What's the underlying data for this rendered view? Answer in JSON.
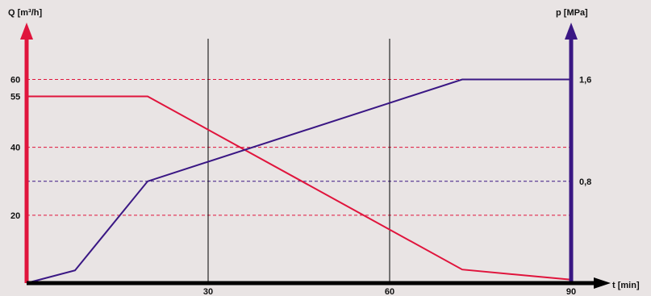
{
  "chart_data": {
    "type": "line",
    "xlabel": "t [min]",
    "ylabel_left": "Q [m³/h]",
    "ylabel_right": "p [MPa]",
    "xlim": [
      0,
      90
    ],
    "ylim_left": [
      0,
      72
    ],
    "ylim_right": [
      0,
      1.92
    ],
    "x_ticks": [
      {
        "value": 30,
        "label": "30"
      },
      {
        "value": 60,
        "label": "60"
      },
      {
        "value": 90,
        "label": "90"
      }
    ],
    "y_left_ticks": [
      {
        "value": 20,
        "label": "20"
      },
      {
        "value": 40,
        "label": "40"
      },
      {
        "value": 55,
        "label": "55"
      },
      {
        "value": 60,
        "label": "60"
      }
    ],
    "y_right_ticks": [
      {
        "value": 0.8,
        "label": "0,8"
      },
      {
        "value": 1.6,
        "label": "1,6"
      }
    ],
    "vertical_gridlines": [
      30,
      60
    ],
    "horizontal_gridlines_left": [
      20,
      40,
      60
    ],
    "horizontal_gridlines_right": [
      0.8
    ],
    "series": [
      {
        "axis": "left",
        "color": "#e0143c",
        "x": [
          0,
          20,
          72,
          90
        ],
        "y": [
          55,
          55,
          4,
          1
        ]
      },
      {
        "axis": "right",
        "color": "#3a1784",
        "x": [
          0,
          8,
          20,
          72,
          90
        ],
        "y": [
          0,
          0.1,
          0.8,
          1.6,
          1.6
        ]
      }
    ],
    "colors": {
      "left_axis": "#e0143c",
      "right_axis": "#3a1784",
      "x_axis": "#000000",
      "grid_left": "#e0143c",
      "grid_right": "#3a1784",
      "grid_vertical": "#000000",
      "background": "#e9e4e4"
    }
  }
}
